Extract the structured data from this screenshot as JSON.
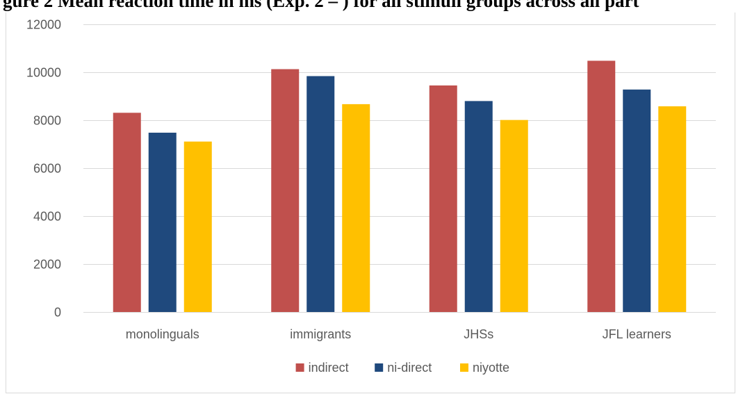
{
  "caption": "gure 2 Mean reaction time in ms (Exp. 2 – ) for all stimuli groups across all part",
  "chart_data": {
    "type": "bar",
    "title": "",
    "xlabel": "",
    "ylabel": "",
    "ylim": [
      0,
      12000
    ],
    "yticks": [
      0,
      2000,
      4000,
      6000,
      8000,
      10000,
      12000
    ],
    "grid": true,
    "legend_position": "bottom",
    "categories": [
      "monolinguals",
      "immigrants",
      "JHSs",
      "JFL learners"
    ],
    "series": [
      {
        "name": "indirect",
        "color": "#C0504D",
        "values": [
          8310,
          10130,
          9450,
          10480
        ]
      },
      {
        "name": "ni-direct",
        "color": "#1F497D",
        "values": [
          7480,
          9840,
          8800,
          9280
        ]
      },
      {
        "name": "niyotte",
        "color": "#FFC000",
        "values": [
          7110,
          8670,
          8010,
          8580
        ]
      }
    ]
  }
}
